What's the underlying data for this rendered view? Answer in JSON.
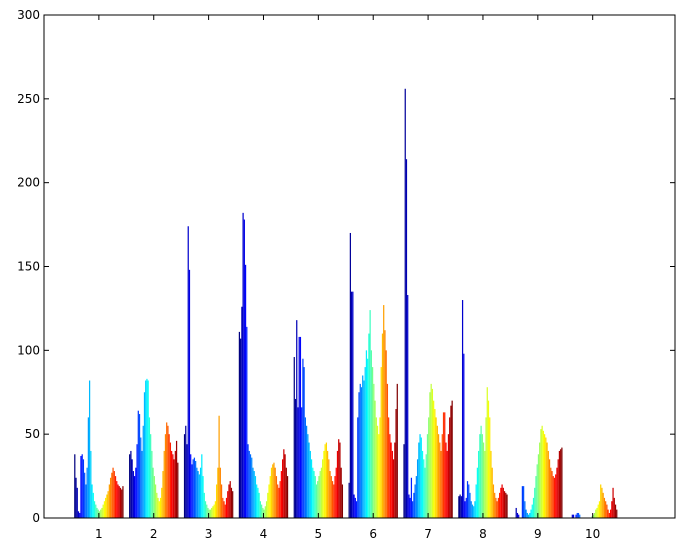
{
  "chart_data": {
    "type": "bar",
    "title": "",
    "xlabel": "",
    "ylabel": "",
    "categories": [
      "1",
      "2",
      "3",
      "4",
      "5",
      "6",
      "7",
      "8",
      "9",
      "10"
    ],
    "ylim": [
      0,
      300
    ],
    "yticks": [
      0,
      50,
      100,
      150,
      200,
      250,
      300
    ],
    "yticklabels": [
      "0",
      "50",
      "100",
      "150",
      "200",
      "250",
      "300"
    ],
    "xlim": [
      0,
      11.5
    ],
    "grid": false,
    "legend": "none",
    "colormap": "jet",
    "bars_per_group": 40,
    "groups": [
      [
        38,
        24,
        18,
        4,
        3,
        37,
        38,
        35,
        27,
        20,
        30,
        60,
        82,
        40,
        20,
        15,
        10,
        8,
        6,
        5,
        4,
        5,
        6,
        8,
        10,
        12,
        14,
        16,
        20,
        24,
        27,
        30,
        28,
        25,
        22,
        20,
        19,
        18,
        17,
        19
      ],
      [
        38,
        40,
        35,
        28,
        25,
        30,
        44,
        64,
        62,
        48,
        40,
        55,
        75,
        82,
        83,
        82,
        60,
        50,
        40,
        30,
        25,
        20,
        15,
        12,
        10,
        12,
        18,
        28,
        40,
        50,
        57,
        55,
        50,
        45,
        40,
        38,
        35,
        40,
        46,
        33
      ],
      [
        50,
        55,
        44,
        174,
        148,
        38,
        32,
        35,
        36,
        34,
        30,
        28,
        26,
        30,
        38,
        25,
        15,
        10,
        8,
        6,
        5,
        5,
        6,
        7,
        8,
        10,
        20,
        30,
        61,
        30,
        20,
        12,
        10,
        8,
        12,
        16,
        20,
        22,
        18,
        16
      ],
      [
        111,
        107,
        126,
        182,
        178,
        151,
        114,
        44,
        40,
        38,
        36,
        30,
        28,
        25,
        20,
        18,
        15,
        10,
        8,
        6,
        5,
        7,
        10,
        15,
        20,
        25,
        30,
        32,
        33,
        30,
        25,
        20,
        18,
        22,
        28,
        35,
        41,
        38,
        30,
        25
      ],
      [
        96,
        71,
        118,
        66,
        108,
        108,
        66,
        95,
        90,
        60,
        55,
        50,
        45,
        40,
        35,
        30,
        28,
        25,
        20,
        22,
        25,
        28,
        30,
        35,
        40,
        44,
        45,
        40,
        35,
        28,
        25,
        22,
        20,
        25,
        30,
        40,
        47,
        45,
        30,
        20
      ],
      [
        21,
        170,
        135,
        135,
        14,
        12,
        10,
        60,
        75,
        80,
        78,
        85,
        82,
        90,
        100,
        95,
        110,
        124,
        100,
        90,
        80,
        70,
        60,
        55,
        50,
        60,
        90,
        110,
        127,
        112,
        100,
        80,
        60,
        50,
        45,
        40,
        35,
        45,
        65,
        80
      ],
      [
        44,
        256,
        214,
        133,
        14,
        12,
        24,
        10,
        15,
        20,
        25,
        35,
        45,
        50,
        48,
        40,
        35,
        30,
        38,
        50,
        60,
        75,
        80,
        77,
        70,
        65,
        60,
        55,
        50,
        45,
        40,
        50,
        63,
        63,
        45,
        40,
        50,
        60,
        67,
        70
      ],
      [
        13,
        14,
        13,
        130,
        98,
        10,
        12,
        22,
        20,
        15,
        10,
        8,
        7,
        10,
        20,
        30,
        40,
        50,
        55,
        50,
        45,
        40,
        60,
        78,
        70,
        60,
        40,
        30,
        20,
        15,
        12,
        10,
        12,
        15,
        18,
        20,
        18,
        16,
        15,
        14
      ],
      [
        0,
        0,
        6,
        3,
        2,
        0,
        0,
        19,
        19,
        10,
        5,
        3,
        2,
        3,
        5,
        8,
        12,
        18,
        25,
        32,
        38,
        45,
        53,
        55,
        52,
        50,
        48,
        45,
        40,
        35,
        30,
        28,
        25,
        24,
        26,
        30,
        35,
        40,
        41,
        42
      ],
      [
        0,
        0,
        0,
        2,
        2,
        0,
        2,
        3,
        3,
        2,
        0,
        0,
        0,
        0,
        0,
        0,
        0,
        0,
        0,
        1,
        2,
        3,
        5,
        6,
        8,
        10,
        20,
        18,
        15,
        12,
        10,
        8,
        5,
        3,
        5,
        10,
        18,
        12,
        8,
        5
      ]
    ]
  }
}
